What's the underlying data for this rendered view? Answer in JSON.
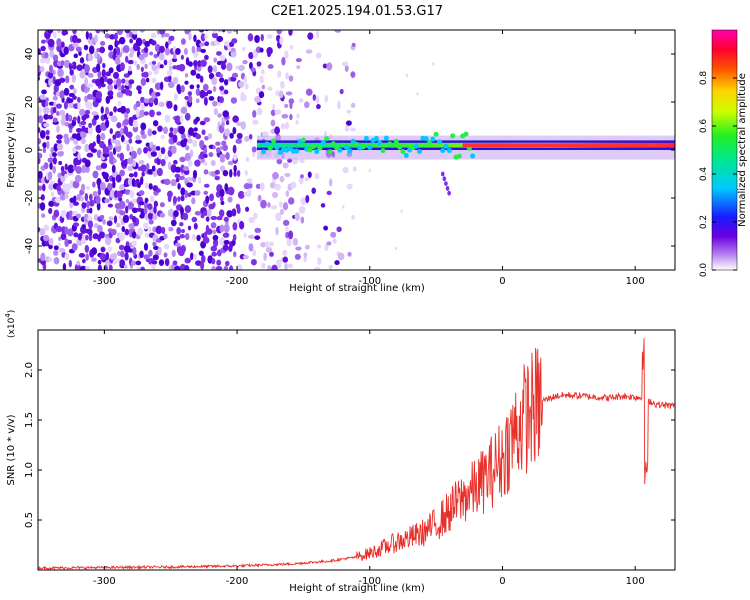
{
  "title": "C2E1.2025.194.01.53.G17",
  "chart_data": [
    {
      "type": "heatmap",
      "ylabel": "Frequency (Hz)",
      "xlabel": "Height of straight line (km)",
      "xlim": [
        -350,
        130
      ],
      "ylim": [
        -50,
        50
      ],
      "x_ticks": [
        -300,
        -200,
        -100,
        0,
        100
      ],
      "y_ticks": [
        -40,
        -20,
        0,
        20,
        40
      ],
      "colorbar": {
        "label": "Normalized spectral amplitude",
        "range": [
          0,
          1
        ],
        "ticks": [
          "0.0",
          "0.2",
          "0.4",
          "0.6",
          "0.8"
        ],
        "tick_values": [
          0.0,
          0.2,
          0.4,
          0.6,
          0.8
        ],
        "colormap": "rainbow (white-violet-blue-cyan-green-yellow-red-magenta)"
      },
      "description_of_field": {
        "noise_region_x": [
          -350,
          -120
        ],
        "signal_line_start_x": -185,
        "signal_line_freq_center": 2,
        "signal_line_end_x": 130
      }
    },
    {
      "type": "line",
      "ylabel": "SNR (10 * v/v)",
      "xlabel": "Height of straight line (km)",
      "y_multiplier_label": "(x10",
      "y_multiplier_exp": "4",
      "y_multiplier_close": ")",
      "xlim": [
        -350,
        130
      ],
      "ylim": [
        0,
        24000
      ],
      "x_ticks": [
        -300,
        -200,
        -100,
        0,
        100
      ],
      "y_tick_values": [
        5000,
        10000,
        15000,
        20000
      ],
      "y_tick_labels": [
        "0.5",
        "1.0",
        "1.5",
        "2.0"
      ],
      "series": [
        {
          "color": "#e8302a",
          "x": [
            -350,
            -300,
            -250,
            -200,
            -160,
            -130,
            -110,
            -100,
            -90,
            -80,
            -70,
            -60,
            -50,
            -40,
            -30,
            -20,
            -10,
            0,
            10,
            20,
            30,
            40,
            50,
            60,
            70,
            80,
            90,
            100,
            105,
            108,
            110,
            115,
            120,
            130
          ],
          "y": [
            200,
            250,
            300,
            400,
            600,
            900,
            1300,
            1700,
            2200,
            2800,
            3200,
            3700,
            4600,
            5900,
            7200,
            8200,
            9600,
            11200,
            14000,
            15800,
            16900,
            17400,
            17500,
            17400,
            17300,
            17200,
            17400,
            17300,
            17200,
            8000,
            17000,
            16600,
            16500,
            16400
          ]
        }
      ]
    }
  ]
}
